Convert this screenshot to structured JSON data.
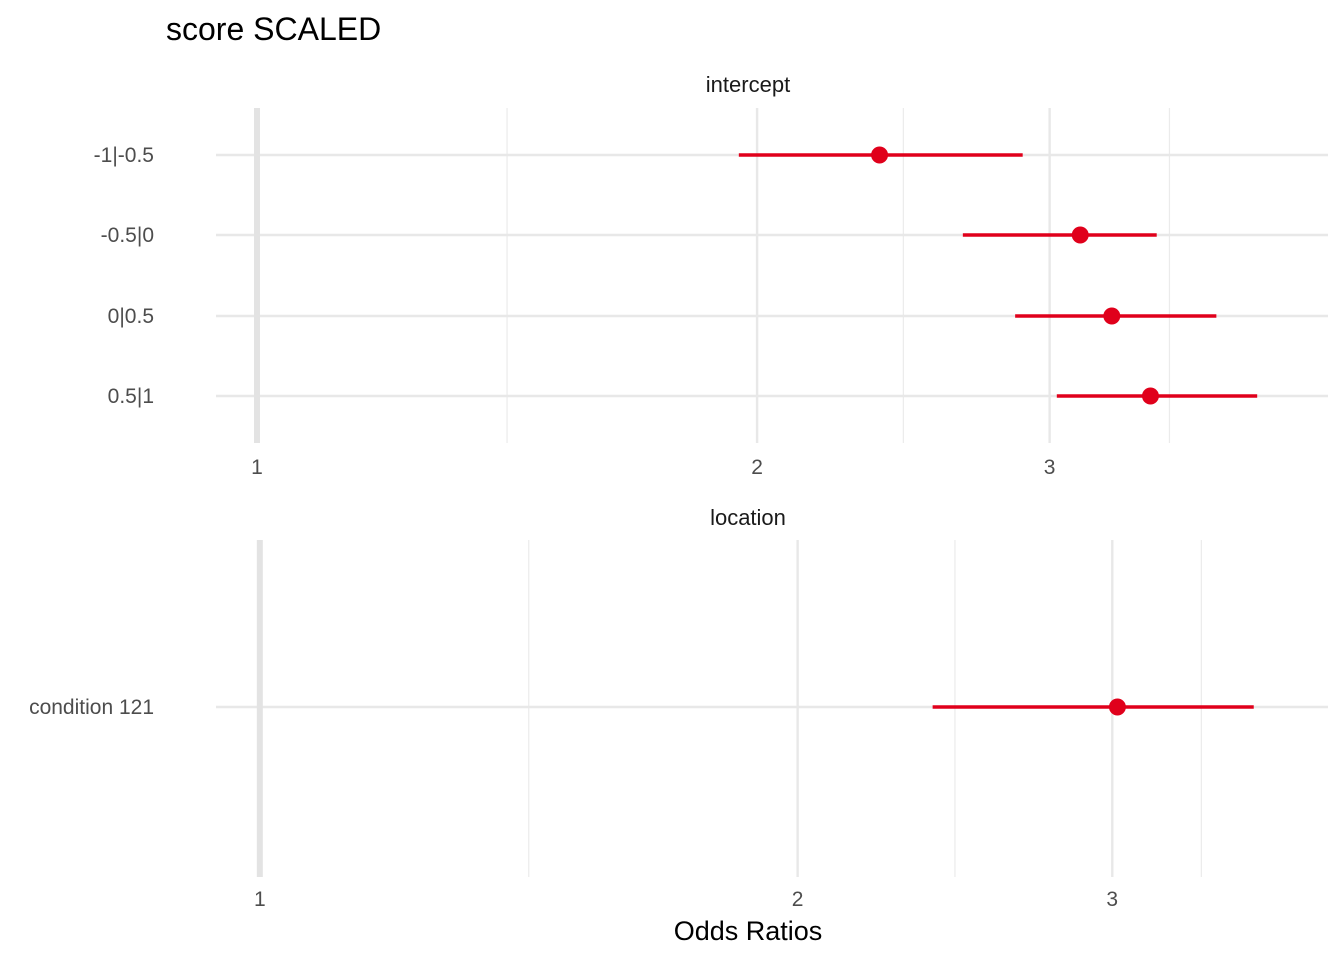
{
  "chart_data": {
    "type": "forest",
    "title": "score SCALED",
    "xlabel": "Odds Ratios",
    "x_scale": "log",
    "reference_line": 1,
    "point_color": "#e0001b",
    "grid": true,
    "panels": [
      {
        "name": "intercept",
        "x_ticks": [
          1,
          2,
          3
        ],
        "xlim": [
          0.95,
          4.1
        ],
        "terms": [
          {
            "label": "-1|-0.5",
            "estimate": 2.37,
            "ci_low": 1.95,
            "ci_high": 2.89
          },
          {
            "label": "-0.5|0",
            "estimate": 3.13,
            "ci_low": 2.66,
            "ci_high": 3.48
          },
          {
            "label": "0|0.5",
            "estimate": 3.27,
            "ci_low": 2.86,
            "ci_high": 3.78
          },
          {
            "label": "0.5|1",
            "estimate": 3.45,
            "ci_low": 3.03,
            "ci_high": 4.0
          }
        ]
      },
      {
        "name": "location",
        "x_ticks": [
          1,
          2,
          3
        ],
        "xlim": [
          0.95,
          3.7
        ],
        "terms": [
          {
            "label": "condition 121",
            "estimate": 3.02,
            "ci_low": 2.38,
            "ci_high": 3.6
          }
        ]
      }
    ]
  }
}
